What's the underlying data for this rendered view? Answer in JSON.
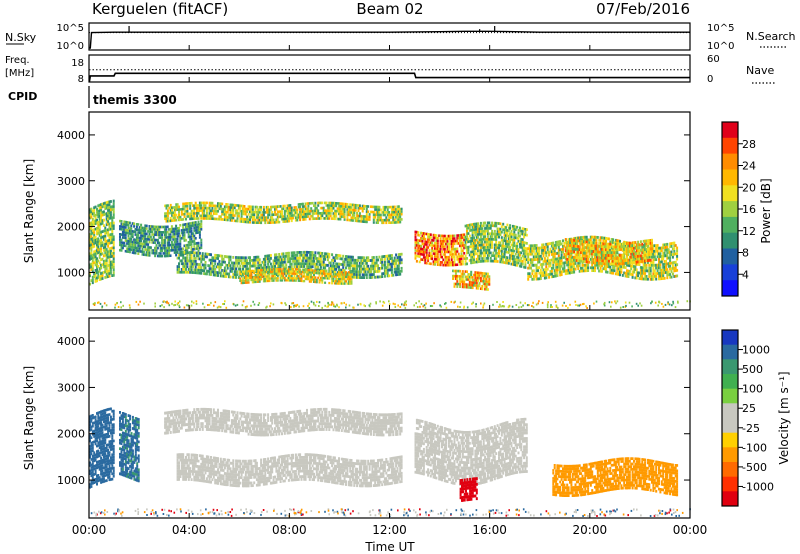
{
  "header": {
    "station": "Kerguelen (fitACF)",
    "beam": "Beam 02",
    "date": "07/Feb/2016"
  },
  "noise_panel": {
    "left_label": "N.Sky",
    "right_label": "N.Search",
    "left_ticks": [
      "10^5",
      "10^0"
    ],
    "right_ticks": [
      "10^5",
      "10^0"
    ]
  },
  "freq_panel": {
    "left_label_1": "Freq.",
    "left_label_2": "[MHz]",
    "right_label": "Nave",
    "left_ticks": [
      "18",
      "8"
    ],
    "right_ticks": [
      "60",
      "0"
    ]
  },
  "cpid_panel": {
    "label": "CPID",
    "value": "themis 3300"
  },
  "time_axis": {
    "label": "Time UT",
    "ticks": [
      "00:00",
      "04:00",
      "08:00",
      "12:00",
      "16:00",
      "20:00",
      "00:00"
    ]
  },
  "power_colorbar": {
    "label": "Power [dB]",
    "ticks": [
      "28",
      "24",
      "20",
      "16",
      "12",
      "8",
      "4"
    ],
    "colors": [
      "#e0001a",
      "#ff4400",
      "#ff8c00",
      "#ffb800",
      "#f0e020",
      "#a0d040",
      "#50b060",
      "#309070",
      "#2060a0",
      "#1840d8",
      "#1010ff"
    ]
  },
  "velocity_colorbar": {
    "label": "Velocity [m s⁻¹]",
    "ticks": [
      "1000",
      "500",
      "100",
      "25",
      "-25",
      "-100",
      "-500",
      "-1000"
    ],
    "colors": [
      "#1838c0",
      "#2a6aa0",
      "#3a9870",
      "#40b050",
      "#7ad040",
      "#c8c8c0",
      "#c8c8c0",
      "#ffd000",
      "#ff9a00",
      "#ff6a00",
      "#ff3000",
      "#e00010"
    ]
  },
  "chart_data": [
    {
      "type": "line",
      "title": "Kerguelen (fitACF)",
      "xlabel": "Time UT",
      "ylabel": "N.Sky",
      "series": [
        {
          "name": "N.Sky",
          "x": [
            0,
            0.05,
            0.1,
            1,
            2,
            4,
            8,
            12,
            14,
            15,
            16,
            17,
            18,
            20,
            24
          ],
          "values": [
            0,
            0,
            3.5,
            3.6,
            3.6,
            3.6,
            3.6,
            3.6,
            3.7,
            3.8,
            3.8,
            3.7,
            3.6,
            3.6,
            3.6
          ]
        },
        {
          "name": "N.Search",
          "x": [
            0,
            24
          ],
          "values": [
            3.5,
            3.5
          ]
        }
      ]
    },
    {
      "type": "line",
      "xlabel": "Time UT",
      "ylabel": "Freq. [MHz]",
      "series": [
        {
          "name": "Freq.",
          "x": [
            0,
            0.02,
            0.05,
            1,
            1.05,
            13,
            13.05,
            24
          ],
          "values": [
            8,
            8,
            11,
            11,
            12.5,
            12.5,
            10,
            10
          ]
        },
        {
          "name": "Nave",
          "x": [
            0,
            24
          ],
          "values": [
            28,
            28
          ]
        }
      ]
    },
    {
      "type": "heatmap",
      "ylabel": "Slant Range [km]",
      "xlabel": "Time UT",
      "xlim": [
        0,
        24
      ],
      "ylim": [
        180,
        4500
      ],
      "colorbar": "Power [dB]",
      "bands": [
        {
          "t": [
            0.0,
            1.0
          ],
          "r": [
            700,
            2400
          ],
          "v": 14
        },
        {
          "t": [
            1.2,
            4.5
          ],
          "r": [
            1400,
            2100
          ],
          "v": 10
        },
        {
          "t": [
            3.0,
            12.5
          ],
          "r": [
            2100,
            2500
          ],
          "v": 16
        },
        {
          "t": [
            3.5,
            12.5
          ],
          "r": [
            900,
            1400
          ],
          "v": 12
        },
        {
          "t": [
            6.0,
            10.5
          ],
          "r": [
            750,
            1050
          ],
          "v": 18
        },
        {
          "t": [
            13.0,
            15.0
          ],
          "r": [
            1200,
            1900
          ],
          "v": 24
        },
        {
          "t": [
            15.0,
            17.5
          ],
          "r": [
            1100,
            2000
          ],
          "v": 14
        },
        {
          "t": [
            17.5,
            23.5
          ],
          "r": [
            900,
            1700
          ],
          "v": 16
        },
        {
          "t": [
            14.5,
            16.0
          ],
          "r": [
            600,
            1000
          ],
          "v": 20
        },
        {
          "t": [
            19.0,
            22.5
          ],
          "r": [
            1200,
            1700
          ],
          "v": 20
        }
      ]
    },
    {
      "type": "heatmap",
      "ylabel": "Slant Range [km]",
      "xlabel": "Time UT",
      "xlim": [
        0,
        24
      ],
      "ylim": [
        180,
        4500
      ],
      "colorbar": "Velocity [m s⁻¹]",
      "bands": [
        {
          "t": [
            0.0,
            1.0
          ],
          "r": [
            800,
            2400
          ],
          "v": 300
        },
        {
          "t": [
            1.2,
            2.0
          ],
          "r": [
            1000,
            2400
          ],
          "v": 120
        },
        {
          "t": [
            3.0,
            12.5
          ],
          "r": [
            2000,
            2500
          ],
          "v": 0
        },
        {
          "t": [
            3.5,
            12.5
          ],
          "r": [
            900,
            1500
          ],
          "v": 0
        },
        {
          "t": [
            13.0,
            17.5
          ],
          "r": [
            1000,
            2200
          ],
          "v": 0
        },
        {
          "t": [
            18.5,
            23.5
          ],
          "r": [
            700,
            1400
          ],
          "v": -200
        },
        {
          "t": [
            14.8,
            15.5
          ],
          "r": [
            500,
            1000
          ],
          "v": -700
        }
      ]
    }
  ]
}
